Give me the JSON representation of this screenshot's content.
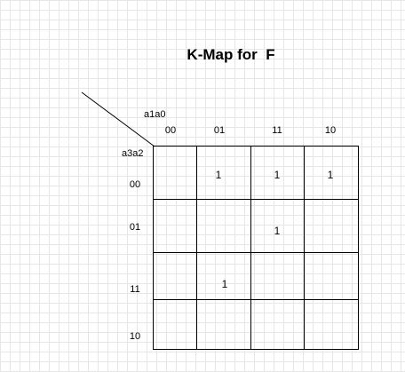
{
  "title": "K-Map for  F",
  "column_variables": "a1a0",
  "row_variables": "a3a2",
  "column_headers": [
    "00",
    "01",
    "11",
    "10"
  ],
  "row_headers": [
    "00",
    "01",
    "11",
    "10"
  ],
  "cells": [
    [
      "",
      "1",
      "1",
      "1"
    ],
    [
      "",
      "",
      "1",
      ""
    ],
    [
      "",
      "1",
      "",
      ""
    ],
    [
      "",
      "",
      "",
      ""
    ]
  ],
  "colors": {
    "grid": "#000000",
    "background_grid": "#e6e6e6"
  }
}
